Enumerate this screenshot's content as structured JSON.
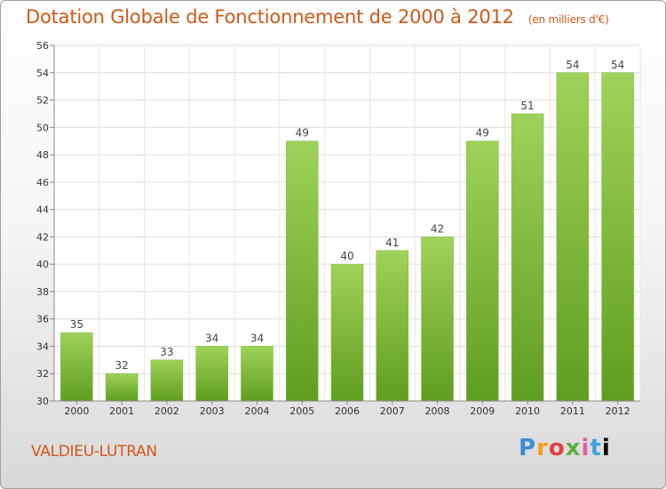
{
  "header": {
    "title": "Dotation Globale de Fonctionnement de 2000 à 2012",
    "subtitle": "(en milliers d'€)"
  },
  "footer": {
    "commune": "VALDIEU-LUTRAN",
    "logo_letters": [
      "P",
      "r",
      "o",
      "x",
      "i",
      "t",
      "i"
    ]
  },
  "colors": {
    "title": "#d05818",
    "bar_top": "#9fd25a",
    "bar_bottom": "#5f9e1e"
  },
  "chart_data": {
    "type": "bar",
    "title": "Dotation Globale de Fonctionnement de 2000 à 2012",
    "subtitle": "(en milliers d'€)",
    "categories": [
      "2000",
      "2001",
      "2002",
      "2003",
      "2004",
      "2005",
      "2006",
      "2007",
      "2008",
      "2009",
      "2010",
      "2011",
      "2012"
    ],
    "values": [
      35,
      32,
      33,
      34,
      34,
      49,
      40,
      41,
      42,
      49,
      51,
      54,
      54
    ],
    "ylim": [
      30,
      56
    ],
    "yticks": [
      30,
      32,
      34,
      36,
      38,
      40,
      42,
      44,
      46,
      48,
      50,
      52,
      54,
      56
    ],
    "grid": true,
    "xlabel": "",
    "ylabel": ""
  }
}
